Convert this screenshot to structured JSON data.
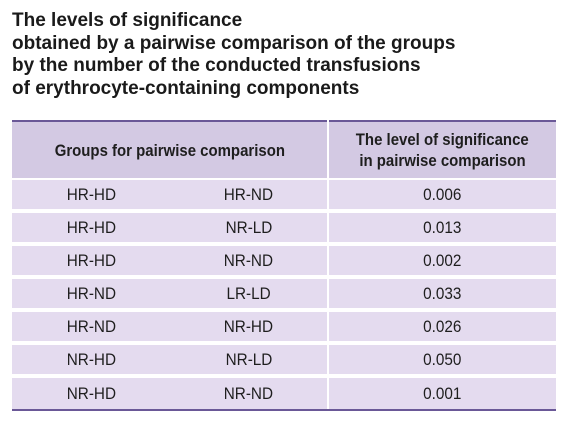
{
  "title": {
    "lines": [
      "The levels of significance",
      "obtained by a pairwise comparison of the groups",
      "by the number of the conducted transfusions",
      "of erythrocyte-containing components"
    ]
  },
  "table": {
    "header": {
      "groups": "Groups for pairwise comparison",
      "significance_line1": "The level of significance",
      "significance_line2": "in pairwise comparison"
    },
    "rows": [
      {
        "group_a": "HR-HD",
        "group_b": "HR-ND",
        "p": "0.006"
      },
      {
        "group_a": "HR-HD",
        "group_b": "NR-LD",
        "p": "0.013"
      },
      {
        "group_a": "HR-HD",
        "group_b": "NR-ND",
        "p": "0.002"
      },
      {
        "group_a": "HR-ND",
        "group_b": "LR-LD",
        "p": "0.033"
      },
      {
        "group_a": "HR-ND",
        "group_b": "NR-HD",
        "p": "0.026"
      },
      {
        "group_a": "NR-HD",
        "group_b": "NR-LD",
        "p": "0.050"
      },
      {
        "group_a": "NR-HD",
        "group_b": "NR-ND",
        "p": "0.001"
      }
    ]
  },
  "colors": {
    "header_bg": "#d3c9e3",
    "row_bg": "#e4dbef",
    "rule": "#6a5897"
  }
}
